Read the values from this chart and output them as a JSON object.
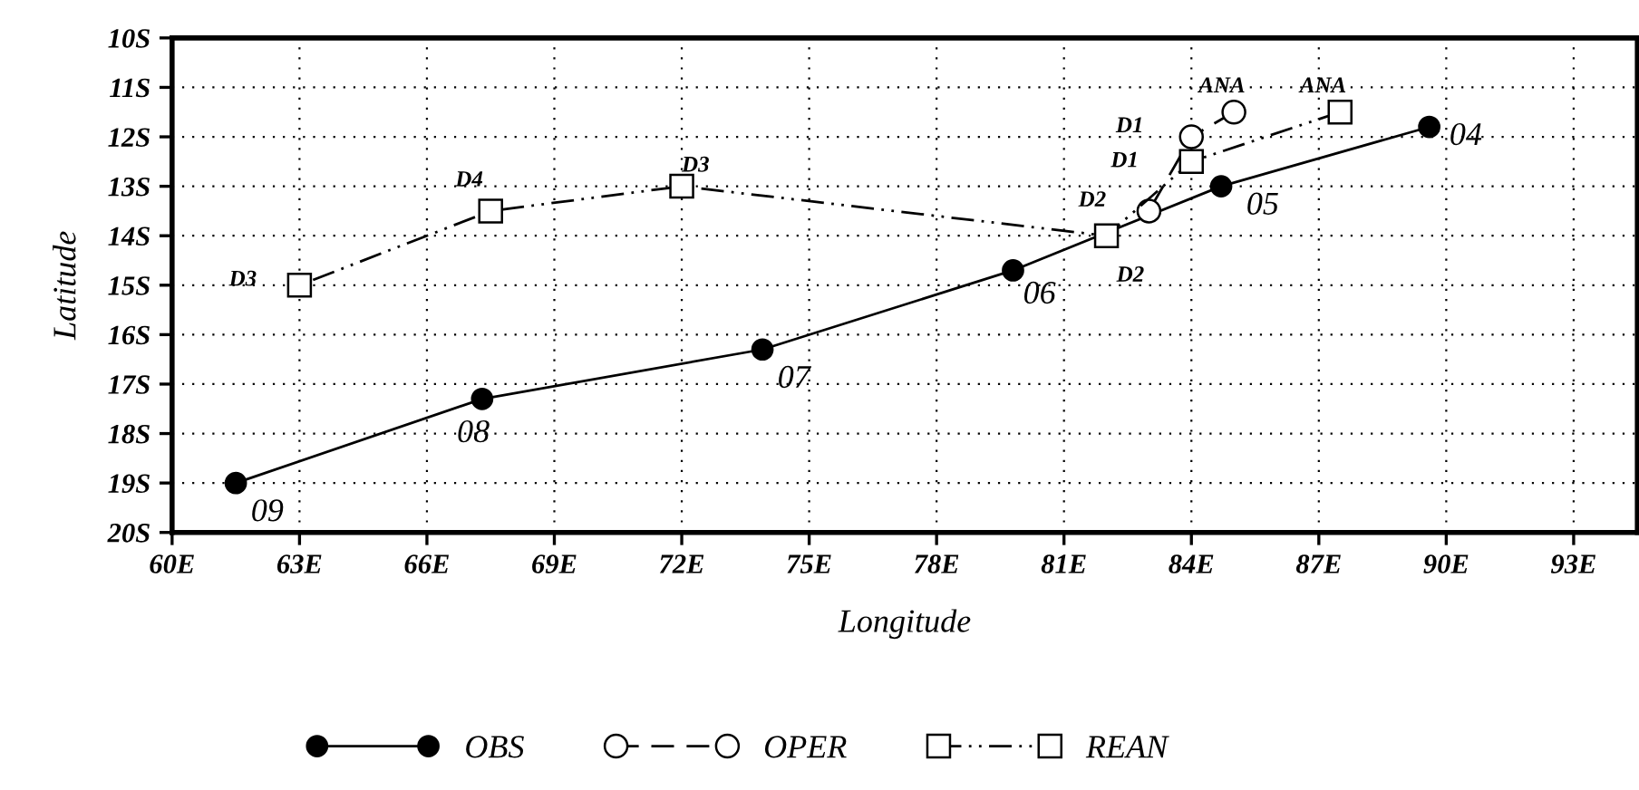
{
  "chart_data": {
    "type": "line",
    "xlabel": "Longitude",
    "ylabel": "Latitude",
    "series": [
      {
        "name": "OBS",
        "color": "#000000",
        "marker": "circle",
        "line_style": "solid",
        "x": [
          61.5,
          67.3,
          73.9,
          79.8,
          84.7,
          89.6
        ],
        "values": [
          -19.0,
          -17.3,
          -16.3,
          -14.7,
          -13.0,
          -11.8
        ]
      },
      {
        "name": "OPER",
        "color": "#000000",
        "marker": "circle",
        "line_style": "dashed",
        "x": [
          85.0,
          84.0,
          83.0
        ],
        "values": [
          -11.5,
          -12.0,
          -13.5
        ]
      },
      {
        "name": "REAN",
        "color": "#000000",
        "marker": "square",
        "line_style": "dotted",
        "x": [
          87.5,
          84.0,
          82.0,
          72.0,
          67.5,
          63.0
        ],
        "values": [
          -11.5,
          -12.5,
          -14.0,
          -13.0,
          -13.5,
          -15.0
        ]
      }
    ],
    "annotations": [
      {
        "text": "09",
        "x": 61.5,
        "y": -19.0
      },
      {
        "text": "08",
        "x": 67.3,
        "y": -17.3
      },
      {
        "text": "07",
        "x": 73.9,
        "y": -16.3
      },
      {
        "text": "06",
        "x": 79.8,
        "y": -14.7
      },
      {
        "text": "05",
        "x": 84.7,
        "y": -13.0
      },
      {
        "text": "04",
        "x": 89.6,
        "y": -11.8
      },
      {
        "text": "ANA",
        "x": 85.0,
        "y": -11.5
      },
      {
        "text": "D1",
        "x": 84.0,
        "y": -12.0
      },
      {
        "text": "D2",
        "x": 83.0,
        "y": -13.5
      },
      {
        "text": "ANA",
        "x": 87.5,
        "y": -11.5
      },
      {
        "text": "D1",
        "x": 84.0,
        "y": -12.5
      },
      {
        "text": "D2",
        "x": 82.0,
        "y": -14.0
      },
      {
        "text": "D3",
        "x": 72.0,
        "y": -13.0
      },
      {
        "text": "D4",
        "x": 67.5,
        "y": -13.5
      },
      {
        "text": "D3",
        "x": 63.0,
        "y": -15.0
      }
    ],
    "xlim": [
      60,
      94.5
    ],
    "xticks": [
      {
        "value": 60,
        "label": "60E"
      },
      {
        "value": 63,
        "label": "63E"
      },
      {
        "value": 66,
        "label": "66E"
      },
      {
        "value": 69,
        "label": "69E"
      },
      {
        "value": 72,
        "label": "72E"
      },
      {
        "value": 75,
        "label": "75E"
      },
      {
        "value": 78,
        "label": "78E"
      },
      {
        "value": 81,
        "label": "81E"
      },
      {
        "value": 84,
        "label": "84E"
      },
      {
        "value": 87,
        "label": "87E"
      },
      {
        "value": 90,
        "label": "90E"
      },
      {
        "value": 93,
        "label": "93E"
      }
    ],
    "ylim": [
      -20,
      -10
    ],
    "yticks": [
      {
        "value": -20,
        "label": "20S"
      },
      {
        "value": -19,
        "label": "19S"
      },
      {
        "value": -18,
        "label": "18S"
      },
      {
        "value": -17,
        "label": "17S"
      },
      {
        "value": -16,
        "label": "16S"
      },
      {
        "value": -15,
        "label": "15S"
      },
      {
        "value": -14,
        "label": "14S"
      },
      {
        "value": -13,
        "label": "13S"
      },
      {
        "value": -12,
        "label": "12S"
      },
      {
        "value": -11,
        "label": "11S"
      },
      {
        "value": -10,
        "label": "10S"
      }
    ],
    "grid": true,
    "legend": "bottom"
  }
}
